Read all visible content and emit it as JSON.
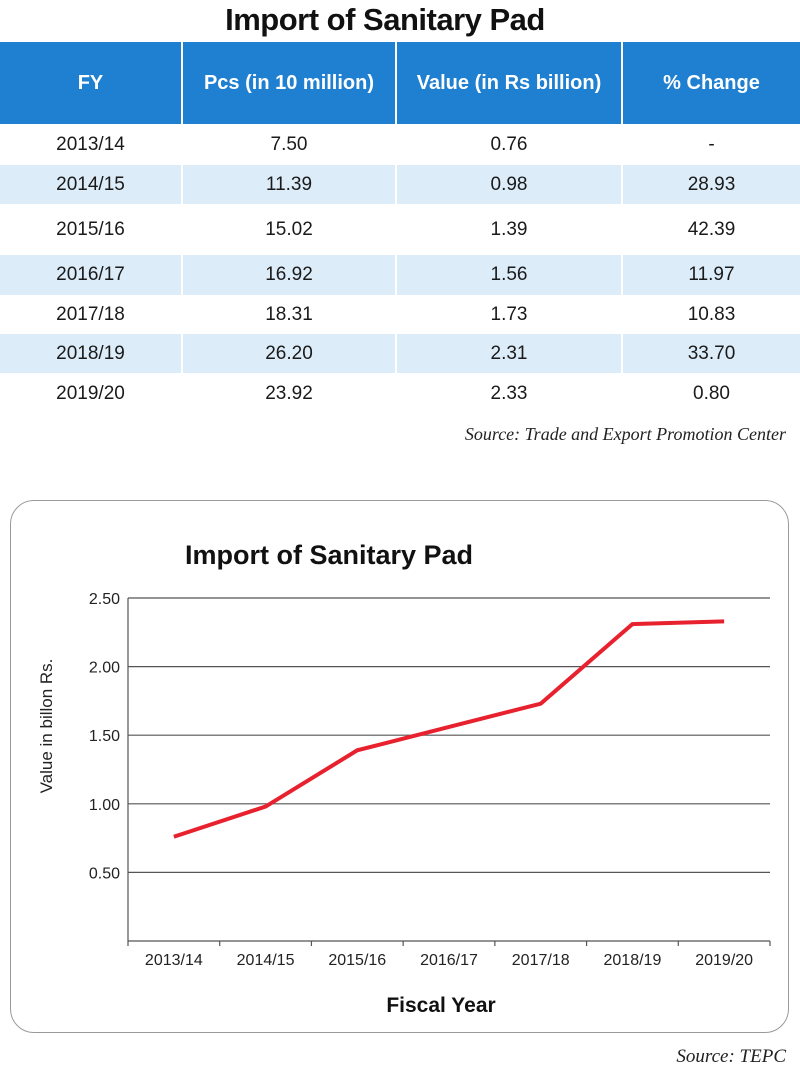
{
  "table": {
    "title": "Import of Sanitary Pad",
    "headers": [
      "FY",
      "Pcs (in 10 million)",
      "Value (in Rs billion)",
      "% Change"
    ],
    "rows": [
      [
        "2013/14",
        "7.50",
        "0.76",
        "-"
      ],
      [
        "2014/15",
        "11.39",
        "0.98",
        "28.93"
      ],
      [
        "2015/16",
        "15.02",
        "1.39",
        "42.39"
      ],
      [
        "2016/17",
        "16.92",
        "1.56",
        "11.97"
      ],
      [
        "2017/18",
        "18.31",
        "1.73",
        "10.83"
      ],
      [
        "2018/19",
        "26.20",
        "2.31",
        "33.70"
      ],
      [
        "2019/20",
        "23.92",
        "2.33",
        "0.80"
      ]
    ],
    "source": "Source: Trade and Export Promotion Center"
  },
  "chart_data": {
    "type": "line",
    "title": "Import of Sanitary Pad",
    "xlabel": "Fiscal Year",
    "ylabel": "Value in billon Rs.",
    "categories": [
      "2013/14",
      "2014/15",
      "2015/16",
      "2016/17",
      "2017/18",
      "2018/19",
      "2019/20"
    ],
    "series": [
      {
        "values": [
          0.76,
          0.98,
          1.39,
          1.56,
          1.73,
          2.31,
          2.33
        ],
        "color": "#e8212e"
      }
    ],
    "yticks": [
      "0.50",
      "1.00",
      "1.50",
      "2.00",
      "2.50"
    ],
    "ylim": [
      0.0,
      2.5
    ],
    "grid": true,
    "gridline_color": "#555555"
  },
  "source_chart": "Source: TEPC",
  "colors": {
    "header_bg": "#1f7fd0",
    "row_alt_bg": "#dcecf9",
    "line": "#e8212e"
  }
}
